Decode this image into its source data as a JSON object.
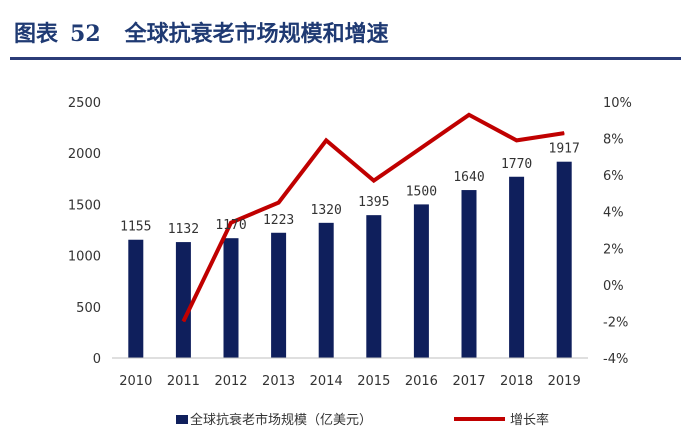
{
  "header": {
    "figure_label": "图表",
    "figure_number": "52",
    "title": "全球抗衰老市场规模和增速"
  },
  "colors": {
    "bar": "#0f1f5c",
    "line": "#c00000",
    "header_text": "#1f3a73",
    "header_rule": "#2b3c78"
  },
  "chart_data": {
    "type": "bar",
    "title": "全球抗衰老市场规模和增速",
    "categories": [
      "2010",
      "2011",
      "2012",
      "2013",
      "2014",
      "2015",
      "2016",
      "2017",
      "2018",
      "2019"
    ],
    "series": [
      {
        "name": "全球抗衰老市场规模（亿美元）",
        "type": "bar",
        "axis": "left",
        "values": [
          1155,
          1132,
          1170,
          1223,
          1320,
          1395,
          1500,
          1640,
          1770,
          1917
        ]
      },
      {
        "name": "增长率",
        "type": "line",
        "axis": "right",
        "values": [
          null,
          -2.0,
          3.4,
          4.5,
          7.9,
          5.7,
          7.5,
          9.3,
          7.9,
          8.3
        ]
      }
    ],
    "data_labels": [
      "1155",
      "1132",
      "1170",
      "1223",
      "1320",
      "1395",
      "1500",
      "1640",
      "1770",
      "1917"
    ],
    "left_axis": {
      "ylim": [
        0,
        2500
      ],
      "ticks": [
        0,
        500,
        1000,
        1500,
        2000,
        2500
      ],
      "tick_labels": [
        "0",
        "500",
        "1000",
        "1500",
        "2000",
        "2500"
      ]
    },
    "right_axis": {
      "ylim": [
        -4,
        10
      ],
      "ticks": [
        -4,
        -2,
        0,
        2,
        4,
        6,
        8,
        10
      ],
      "tick_labels": [
        "-4%",
        "-2%",
        "0%",
        "2%",
        "4%",
        "6%",
        "8%",
        "10%"
      ]
    },
    "grid": false,
    "legend": {
      "position": "bottom",
      "entries": [
        "全球抗衰老市场规模（亿美元）",
        "增长率"
      ]
    }
  }
}
